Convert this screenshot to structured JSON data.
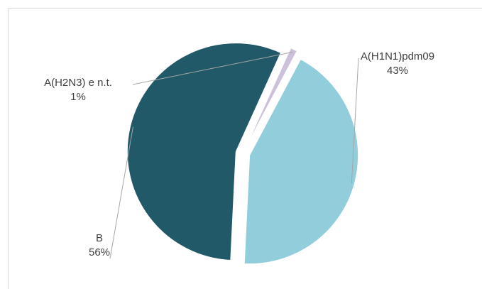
{
  "chart_data": {
    "type": "pie",
    "categories": [
      "A(H1N1)pdm09",
      "B",
      "A(H2N3) e n.t."
    ],
    "values": [
      43,
      56,
      1
    ],
    "labels": [
      {
        "name": "A(H1N1)pdm09",
        "pct": "43%"
      },
      {
        "name": "B",
        "pct": "56%"
      },
      {
        "name": "A(H2N3) e n.t.",
        "pct": "1%"
      }
    ],
    "colors": [
      "#92cddc",
      "#215968",
      "#ccc0da"
    ],
    "exploded": true,
    "legend": "none"
  }
}
